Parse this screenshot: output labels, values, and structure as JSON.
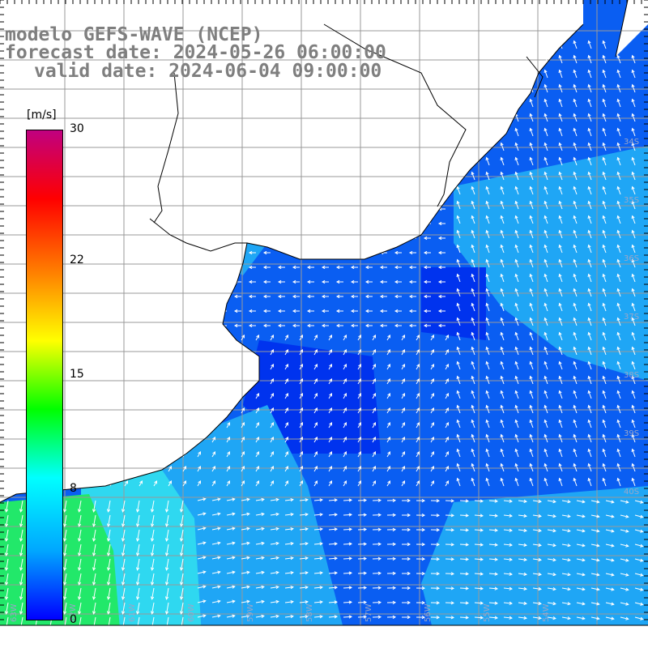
{
  "title": {
    "line1": "modelo GEFS-WAVE (NCEP)",
    "line2": "forecast date: 2024-05-26 06:00:00",
    "line3": "valid date: 2024-06-04 09:00:00"
  },
  "colorbar": {
    "unit": "[m/s]",
    "ticks": [
      {
        "value": 30,
        "label": "30"
      },
      {
        "value": 22,
        "label": "22"
      },
      {
        "value": 15,
        "label": "15"
      },
      {
        "value": 8,
        "label": "8"
      },
      {
        "value": 0,
        "label": "0"
      }
    ],
    "colors": [
      "#0000ff",
      "#00a6ff",
      "#00ffff",
      "#00ff00",
      "#ffff00",
      "#ff7f00",
      "#ff0000",
      "#c00080"
    ]
  },
  "map": {
    "ocean_colors": {
      "deep": "#0033ee",
      "mid": "#0a5ef2",
      "light": "#1fa6f5",
      "cyan": "#2fd8f0",
      "green": "#22e86a"
    },
    "land_color": "#ffffff",
    "coast_color": "#000000",
    "grid_color": "#999999",
    "arrow_color": "#ffffff",
    "lat_labels": [
      "34S",
      "35S",
      "36S",
      "37S",
      "38S",
      "39S",
      "40S"
    ],
    "lon_labels": [
      "63W",
      "62W",
      "61W",
      "60W",
      "59W",
      "58W",
      "57W",
      "56W",
      "55W",
      "54W"
    ]
  }
}
